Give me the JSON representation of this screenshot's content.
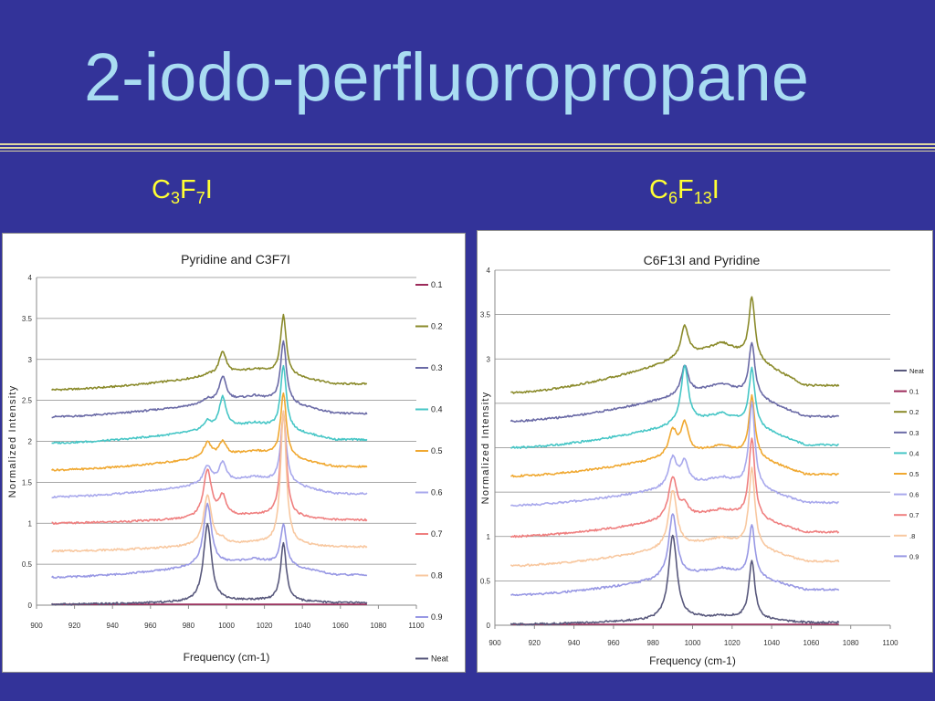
{
  "slide": {
    "title": "2-iodo-perfluoropropane",
    "left_label": {
      "base": [
        "C",
        "F",
        "I"
      ],
      "subs": [
        "3",
        "7"
      ]
    },
    "right_label": {
      "base": [
        "C",
        "F",
        "I"
      ],
      "subs": [
        "6",
        "13"
      ]
    }
  },
  "colors": {
    "background": "#333399",
    "title": "#a9dcf2",
    "subtitle": "#ffff33",
    "series": {
      "0.1": "#9c2a5a",
      "0.2": "#8a8a2a",
      "0.3": "#6a6aa6",
      "0.4": "#46c6c6",
      "0.5": "#f0a830",
      "0.6": "#a8a8ec",
      "0.7": "#ef7f7f",
      "0.8": "#f8c8a0",
      ".8": "#f8c8a0",
      "0.9": "#9898e4",
      "Neat": "#58587c"
    }
  },
  "chart_data": [
    {
      "type": "line",
      "title": "Pyridine and C3F7I",
      "xlabel": "Frequency (cm-1)",
      "ylabel": "Normalized Intensity",
      "xlim": [
        900,
        1100
      ],
      "ylim": [
        0,
        4
      ],
      "xticks": [
        900,
        920,
        940,
        960,
        980,
        1000,
        1020,
        1040,
        1060,
        1080,
        1100
      ],
      "yticks": [
        0,
        0.5,
        1,
        1.5,
        2,
        2.5,
        3,
        3.5,
        4
      ],
      "ytick_labels": [
        "0",
        "0.5",
        "1",
        "1.5",
        "2",
        "2.5",
        "3",
        "3.5",
        "4"
      ],
      "grid": true,
      "legend_position": "right",
      "x_range_data": [
        908,
        1074
      ],
      "legend": [
        "0.1",
        "0.2",
        "0.3",
        "0.4",
        "0.5",
        "0.6",
        "0.7",
        "0.8",
        "0.9",
        "Neat"
      ],
      "series": [
        {
          "name": "0.1",
          "baseline": [
            0.01,
            0.01
          ],
          "peaks": []
        },
        {
          "name": "0.2",
          "baseline": [
            2.63,
            2.88
          ],
          "tail": 2.7,
          "peaks": [
            [
              990,
              0.02,
              2.5
            ],
            [
              998,
              0.28,
              2.2
            ],
            [
              1030,
              0.72,
              1.8
            ]
          ]
        },
        {
          "name": "0.3",
          "baseline": [
            2.3,
            2.55
          ],
          "tail": 2.34,
          "peaks": [
            [
              990,
              0.05,
              2.5
            ],
            [
              998,
              0.3,
              2.2
            ],
            [
              1030,
              0.75,
              1.8
            ]
          ]
        },
        {
          "name": "0.4",
          "baseline": [
            1.98,
            2.22
          ],
          "tail": 2.02,
          "peaks": [
            [
              990,
              0.1,
              2.5
            ],
            [
              998,
              0.38,
              2.2
            ],
            [
              1030,
              0.78,
              1.8
            ]
          ]
        },
        {
          "name": "0.5",
          "baseline": [
            1.65,
            1.88
          ],
          "tail": 1.69,
          "peaks": [
            [
              990,
              0.18,
              2.5
            ],
            [
              998,
              0.17,
              2.2
            ],
            [
              1030,
              0.78,
              1.8
            ]
          ]
        },
        {
          "name": "0.6",
          "baseline": [
            1.32,
            1.56
          ],
          "tail": 1.36,
          "peaks": [
            [
              990,
              0.22,
              2.5
            ],
            [
              998,
              0.24,
              2.2
            ],
            [
              1030,
              0.82,
              1.8
            ]
          ]
        },
        {
          "name": "0.7",
          "baseline": [
            1.0,
            1.1
          ],
          "tail": 1.04,
          "peaks": [
            [
              990,
              0.58,
              2.5
            ],
            [
              998,
              0.24,
              2.2
            ],
            [
              1030,
              1.28,
              1.8
            ]
          ]
        },
        {
          "name": "0.8",
          "baseline": [
            0.66,
            0.76
          ],
          "tail": 0.71,
          "peaks": [
            [
              990,
              0.62,
              2.5
            ],
            [
              998,
              0.05,
              2.2
            ],
            [
              1030,
              1.62,
              1.8
            ]
          ]
        },
        {
          "name": "0.9",
          "baseline": [
            0.34,
            0.56
          ],
          "tail": 0.37,
          "peaks": [
            [
              990,
              0.75,
              2.5
            ],
            [
              1030,
              0.5,
              1.8
            ]
          ]
        },
        {
          "name": "Neat",
          "baseline": [
            0.01,
            0.06
          ],
          "tail": 0.03,
          "peaks": [
            [
              990,
              0.95,
              2.5
            ],
            [
              1030,
              0.7,
              1.8
            ]
          ]
        }
      ]
    },
    {
      "type": "line",
      "title": "C6F13I and Pyridine",
      "xlabel": "Frequency (cm-1)",
      "ylabel": "Normalized Intensity",
      "xlim": [
        900,
        1100
      ],
      "ylim": [
        0,
        4
      ],
      "xticks": [
        900,
        920,
        940,
        960,
        980,
        1000,
        1020,
        1040,
        1060,
        1080,
        1100
      ],
      "yticks": [
        0,
        0.5,
        1,
        1.5,
        2,
        2.5,
        3,
        3.5,
        4
      ],
      "ytick_labels": [
        "0",
        "0.5",
        "1",
        "",
        "",
        "",
        "3",
        "3.5",
        "4"
      ],
      "grid": true,
      "legend_position": "right",
      "x_range_data": [
        908,
        1074
      ],
      "legend": [
        "Neat",
        "0.1",
        "0.2",
        "0.3",
        "0.4",
        "0.5",
        "0.6",
        "0.7",
        ".8",
        "0.9"
      ],
      "series": [
        {
          "name": "0.1",
          "baseline": [
            0.01,
            0.01
          ],
          "peaks": []
        },
        {
          "name": "0.2",
          "baseline": [
            2.62,
            3.18
          ],
          "tail": 2.7,
          "peaks": [
            [
              996,
              0.35,
              2.2
            ],
            [
              1030,
              0.7,
              1.8
            ]
          ]
        },
        {
          "name": "0.3",
          "baseline": [
            2.3,
            2.72
          ],
          "tail": 2.35,
          "peaks": [
            [
              996,
              0.32,
              2.2
            ],
            [
              1030,
              0.6,
              1.8
            ]
          ]
        },
        {
          "name": "0.4",
          "baseline": [
            2.0,
            2.38
          ],
          "tail": 2.03,
          "peaks": [
            [
              996,
              0.65,
              2.2
            ],
            [
              1030,
              0.64,
              1.8
            ]
          ]
        },
        {
          "name": "0.5",
          "baseline": [
            1.68,
            2.02
          ],
          "tail": 1.7,
          "peaks": [
            [
              990,
              0.28,
              2.5
            ],
            [
              996,
              0.34,
              2.2
            ],
            [
              1030,
              0.68,
              1.8
            ]
          ]
        },
        {
          "name": "0.6",
          "baseline": [
            1.35,
            1.66
          ],
          "tail": 1.38,
          "peaks": [
            [
              990,
              0.33,
              2.5
            ],
            [
              996,
              0.25,
              2.2
            ],
            [
              1030,
              0.95,
              1.8
            ]
          ]
        },
        {
          "name": "0.7",
          "baseline": [
            1.0,
            1.3
          ],
          "tail": 1.05,
          "peaks": [
            [
              990,
              0.47,
              2.5
            ],
            [
              996,
              0.12,
              2.2
            ],
            [
              1030,
              0.9,
              1.8
            ]
          ]
        },
        {
          "name": ".8",
          "baseline": [
            0.67,
            0.98
          ],
          "tail": 0.72,
          "peaks": [
            [
              990,
              0.65,
              2.5
            ],
            [
              1030,
              0.88,
              1.8
            ]
          ]
        },
        {
          "name": "0.9",
          "baseline": [
            0.34,
            0.64
          ],
          "tail": 0.4,
          "peaks": [
            [
              990,
              0.72,
              2.5
            ],
            [
              1030,
              0.58,
              1.8
            ]
          ]
        },
        {
          "name": "Neat",
          "baseline": [
            0.01,
            0.1
          ],
          "tail": 0.03,
          "peaks": [
            [
              990,
              0.95,
              2.5
            ],
            [
              1030,
              0.66,
              1.8
            ]
          ]
        }
      ]
    }
  ]
}
